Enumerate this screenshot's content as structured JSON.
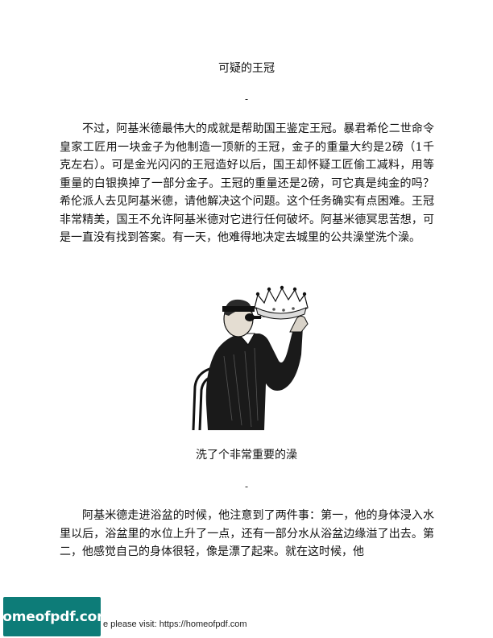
{
  "sections": [
    {
      "title": "可疑的王冠",
      "divider": "-",
      "paragraph": "不过，阿基米德最伟大的成就是帮助国王鉴定王冠。暴君希伦二世命令皇家工匠用一块金子为他制造一顶新的王冠，金子的重量大约是2磅（1千克左右）。可是金光闪闪的王冠造好以后，国王却怀疑工匠偷工减料，用等重量的白银换掉了一部分金子。王冠的重量还是2磅，可它真是纯金的吗？希伦派人去见阿基米德，请他解决这个问题。这个任务确实有点困难。王冠非常精美，国王不允许阿基米德对它进行任何破坏。阿基米德冥思苦想，可是一直没有找到答案。有一天，他难得地决定去城里的公共澡堂洗个澡。"
    },
    {
      "title": "洗了个非常重要的澡",
      "divider": "-",
      "paragraph": "阿基米德走进浴盆的时候，他注意到了两件事：第一，他的身体浸入水里以后，浴盆里的水位上升了一点，还有一部分水从浴盆边缘溢了出去。第二，他感觉自己的身体很轻，像是漂了起来。就在这时候，他"
    }
  ],
  "illustration": {
    "icon": "man-examining-crown-illustration"
  },
  "footer": {
    "badge_text": "homeofpdf.com",
    "visit_text": "e please visit: https://homeofpdf.com",
    "badge_color": "#0d7c78"
  }
}
